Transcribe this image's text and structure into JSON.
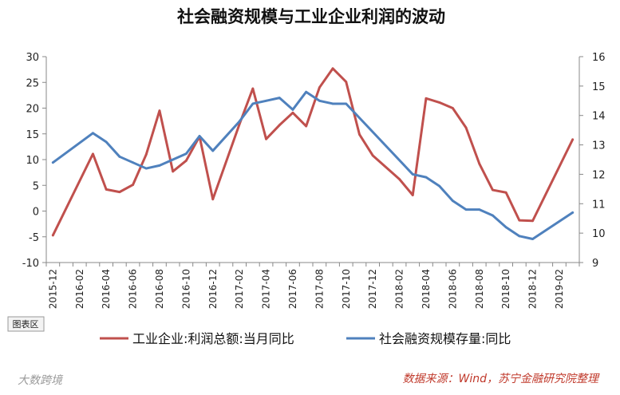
{
  "chart_data": {
    "type": "line",
    "title": "社会融资规模与工业企业利润的波动",
    "x": [
      "2015-12",
      "2016-01",
      "2016-02",
      "2016-03",
      "2016-04",
      "2016-05",
      "2016-06",
      "2016-07",
      "2016-08",
      "2016-09",
      "2016-10",
      "2016-11",
      "2016-12",
      "2017-01",
      "2017-02",
      "2017-03",
      "2017-04",
      "2017-05",
      "2017-06",
      "2017-07",
      "2017-08",
      "2017-09",
      "2017-10",
      "2017-11",
      "2017-12",
      "2018-01",
      "2018-02",
      "2018-03",
      "2018-04",
      "2018-05",
      "2018-06",
      "2018-07",
      "2018-08",
      "2018-09",
      "2018-10",
      "2018-11",
      "2018-12",
      "2019-01",
      "2019-02",
      "2019-03"
    ],
    "xtick_labels": [
      "2015-12",
      "2016-02",
      "2016-04",
      "2016-06",
      "2016-08",
      "2016-10",
      "2016-12",
      "2017-02",
      "2017-04",
      "2017-06",
      "2017-08",
      "2017-10",
      "2017-12",
      "2018-02",
      "2018-04",
      "2018-06",
      "2018-08",
      "2018-10",
      "2018-12",
      "2019-02"
    ],
    "y_left": {
      "lim": [
        -10,
        30
      ],
      "ticks": [
        "30",
        "25",
        "20",
        "15",
        "10",
        "5",
        "0",
        "-5",
        "-10"
      ]
    },
    "y_right": {
      "lim": [
        9,
        16
      ],
      "ticks": [
        "16",
        "15",
        "14",
        "13",
        "12",
        "11",
        "10",
        "9"
      ]
    },
    "series": [
      {
        "name": "工业企业:利润总额:当月同比",
        "axis": "left",
        "color": "#c0504d",
        "points": [
          {
            "x": "2015-12",
            "y": -4.7
          },
          {
            "x": "2016-03",
            "y": 11.1
          },
          {
            "x": "2016-04",
            "y": 4.2
          },
          {
            "x": "2016-05",
            "y": 3.7
          },
          {
            "x": "2016-06",
            "y": 5.1
          },
          {
            "x": "2016-07",
            "y": 11.0
          },
          {
            "x": "2016-08",
            "y": 19.5
          },
          {
            "x": "2016-09",
            "y": 7.7
          },
          {
            "x": "2016-10",
            "y": 9.8
          },
          {
            "x": "2016-11",
            "y": 14.5
          },
          {
            "x": "2016-12",
            "y": 2.3
          },
          {
            "x": "2017-02",
            "y": 16.9
          },
          {
            "x": "2017-03",
            "y": 23.8
          },
          {
            "x": "2017-04",
            "y": 14.0
          },
          {
            "x": "2017-05",
            "y": 16.7
          },
          {
            "x": "2017-06",
            "y": 19.1
          },
          {
            "x": "2017-07",
            "y": 16.5
          },
          {
            "x": "2017-08",
            "y": 24.0
          },
          {
            "x": "2017-09",
            "y": 27.7
          },
          {
            "x": "2017-10",
            "y": 25.1
          },
          {
            "x": "2017-11",
            "y": 14.9
          },
          {
            "x": "2017-12",
            "y": 10.8
          },
          {
            "x": "2018-02",
            "y": 6.2
          },
          {
            "x": "2018-03",
            "y": 3.1
          },
          {
            "x": "2018-04",
            "y": 21.9
          },
          {
            "x": "2018-05",
            "y": 21.1
          },
          {
            "x": "2018-06",
            "y": 20.0
          },
          {
            "x": "2018-07",
            "y": 16.2
          },
          {
            "x": "2018-08",
            "y": 9.2
          },
          {
            "x": "2018-09",
            "y": 4.1
          },
          {
            "x": "2018-10",
            "y": 3.6
          },
          {
            "x": "2018-11",
            "y": -1.8
          },
          {
            "x": "2018-12",
            "y": -1.9
          },
          {
            "x": "2019-03",
            "y": 13.9
          }
        ]
      },
      {
        "name": "社会融资规模存量:同比",
        "axis": "right",
        "color": "#4f81bd",
        "points": [
          {
            "x": "2015-12",
            "y": 12.4
          },
          {
            "x": "2016-03",
            "y": 13.4
          },
          {
            "x": "2016-04",
            "y": 13.1
          },
          {
            "x": "2016-05",
            "y": 12.6
          },
          {
            "x": "2016-06",
            "y": 12.4
          },
          {
            "x": "2016-07",
            "y": 12.2
          },
          {
            "x": "2016-08",
            "y": 12.3
          },
          {
            "x": "2016-09",
            "y": 12.5
          },
          {
            "x": "2016-10",
            "y": 12.7
          },
          {
            "x": "2016-11",
            "y": 13.3
          },
          {
            "x": "2016-12",
            "y": 12.8
          },
          {
            "x": "2017-02",
            "y": 13.8
          },
          {
            "x": "2017-03",
            "y": 14.4
          },
          {
            "x": "2017-04",
            "y": 14.5
          },
          {
            "x": "2017-05",
            "y": 14.6
          },
          {
            "x": "2017-06",
            "y": 14.2
          },
          {
            "x": "2017-07",
            "y": 14.8
          },
          {
            "x": "2017-08",
            "y": 14.5
          },
          {
            "x": "2017-09",
            "y": 14.4
          },
          {
            "x": "2017-10",
            "y": 14.4
          },
          {
            "x": "2018-03",
            "y": 12.0
          },
          {
            "x": "2018-04",
            "y": 11.9
          },
          {
            "x": "2018-05",
            "y": 11.6
          },
          {
            "x": "2018-06",
            "y": 11.1
          },
          {
            "x": "2018-07",
            "y": 10.8
          },
          {
            "x": "2018-08",
            "y": 10.8
          },
          {
            "x": "2018-09",
            "y": 10.6
          },
          {
            "x": "2018-10",
            "y": 10.2
          },
          {
            "x": "2018-11",
            "y": 9.9
          },
          {
            "x": "2018-12",
            "y": 9.8
          },
          {
            "x": "2019-03",
            "y": 10.7
          }
        ]
      }
    ],
    "legend_position": "bottom",
    "grid": false
  },
  "chart_button_label": "图表区",
  "source_text": "数据来源：Wind，苏宁金融研究院整理",
  "watermark_text": "大数跨境"
}
